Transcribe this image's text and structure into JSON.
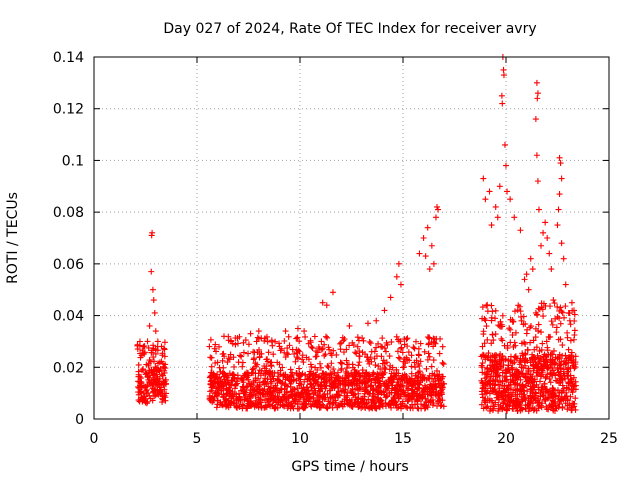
{
  "colors": {
    "points": "#ff0000",
    "axis": "#000000",
    "grid": "#a0a0a0",
    "background": "#ffffff"
  },
  "chart_data": {
    "type": "scatter",
    "title": "Day 027 of 2024, Rate Of TEC Index for receiver avry",
    "xlabel": "GPS time / hours",
    "ylabel": "ROTI / TECUs",
    "xlim": [
      0,
      25
    ],
    "ylim": [
      0,
      0.14
    ],
    "xticks": [
      0,
      5,
      10,
      15,
      20,
      25
    ],
    "xtick_labels": [
      "0",
      "5",
      "10",
      "15",
      "20",
      "25"
    ],
    "yticks": [
      0,
      0.02,
      0.04,
      0.06,
      0.08,
      0.1,
      0.12,
      0.14
    ],
    "ytick_labels": [
      "0",
      "0.02",
      "0.04",
      "0.06",
      "0.08",
      "0.1",
      "0.12",
      "0.14"
    ],
    "grid": true,
    "marker": "+",
    "segments": [
      {
        "x_start": 2.1,
        "x_end": 3.5,
        "base_min": 0.006,
        "base_max": 0.02,
        "tail_max": 0.03,
        "density": 140
      },
      {
        "x_start": 5.6,
        "x_end": 17.0,
        "base_min": 0.004,
        "base_max": 0.018,
        "tail_max": 0.032,
        "density": 140
      },
      {
        "x_start": 18.8,
        "x_end": 23.4,
        "base_min": 0.003,
        "base_max": 0.025,
        "tail_max": 0.045,
        "density": 180
      }
    ],
    "series": [
      {
        "name": "ROTI",
        "points": [
          [
            2.8,
            0.071
          ],
          [
            2.82,
            0.072
          ],
          [
            2.78,
            0.057
          ],
          [
            2.86,
            0.05
          ],
          [
            2.9,
            0.046
          ],
          [
            2.95,
            0.041
          ],
          [
            2.7,
            0.036
          ],
          [
            3.0,
            0.034
          ],
          [
            2.6,
            0.03
          ],
          [
            3.1,
            0.03
          ],
          [
            2.4,
            0.028
          ],
          [
            7.6,
            0.033
          ],
          [
            8.0,
            0.034
          ],
          [
            9.3,
            0.034
          ],
          [
            9.9,
            0.035
          ],
          [
            10.2,
            0.034
          ],
          [
            11.1,
            0.045
          ],
          [
            11.3,
            0.044
          ],
          [
            11.6,
            0.049
          ],
          [
            12.4,
            0.036
          ],
          [
            13.3,
            0.037
          ],
          [
            13.7,
            0.038
          ],
          [
            14.1,
            0.042
          ],
          [
            14.4,
            0.047
          ],
          [
            14.8,
            0.06
          ],
          [
            14.7,
            0.055
          ],
          [
            14.9,
            0.052
          ],
          [
            15.8,
            0.064
          ],
          [
            16.0,
            0.07
          ],
          [
            16.1,
            0.063
          ],
          [
            16.2,
            0.074
          ],
          [
            16.4,
            0.067
          ],
          [
            16.6,
            0.078
          ],
          [
            16.7,
            0.081
          ],
          [
            16.65,
            0.082
          ],
          [
            16.5,
            0.06
          ],
          [
            16.3,
            0.058
          ],
          [
            18.9,
            0.093
          ],
          [
            19.0,
            0.085
          ],
          [
            19.2,
            0.088
          ],
          [
            19.3,
            0.075
          ],
          [
            19.5,
            0.082
          ],
          [
            19.6,
            0.078
          ],
          [
            19.7,
            0.09
          ],
          [
            19.85,
            0.14
          ],
          [
            19.88,
            0.135
          ],
          [
            19.9,
            0.133
          ],
          [
            19.8,
            0.125
          ],
          [
            19.82,
            0.122
          ],
          [
            19.95,
            0.106
          ],
          [
            20.0,
            0.098
          ],
          [
            20.05,
            0.088
          ],
          [
            20.2,
            0.085
          ],
          [
            20.4,
            0.078
          ],
          [
            20.7,
            0.073
          ],
          [
            20.9,
            0.054
          ],
          [
            21.0,
            0.056
          ],
          [
            21.2,
            0.062
          ],
          [
            21.3,
            0.058
          ],
          [
            21.1,
            0.05
          ],
          [
            21.5,
            0.13
          ],
          [
            21.55,
            0.126
          ],
          [
            21.52,
            0.124
          ],
          [
            21.45,
            0.116
          ],
          [
            21.5,
            0.102
          ],
          [
            21.55,
            0.092
          ],
          [
            21.6,
            0.081
          ],
          [
            21.7,
            0.067
          ],
          [
            21.8,
            0.072
          ],
          [
            21.9,
            0.076
          ],
          [
            22.0,
            0.07
          ],
          [
            22.1,
            0.064
          ],
          [
            22.2,
            0.058
          ],
          [
            22.3,
            0.046
          ],
          [
            22.6,
            0.101
          ],
          [
            22.65,
            0.099
          ],
          [
            22.7,
            0.093
          ],
          [
            22.6,
            0.087
          ],
          [
            22.55,
            0.081
          ],
          [
            22.5,
            0.075
          ],
          [
            22.7,
            0.068
          ],
          [
            22.8,
            0.062
          ],
          [
            22.9,
            0.052
          ],
          [
            23.2,
            0.045
          ],
          [
            23.3,
            0.042
          ],
          [
            23.1,
            0.038
          ]
        ]
      }
    ]
  }
}
